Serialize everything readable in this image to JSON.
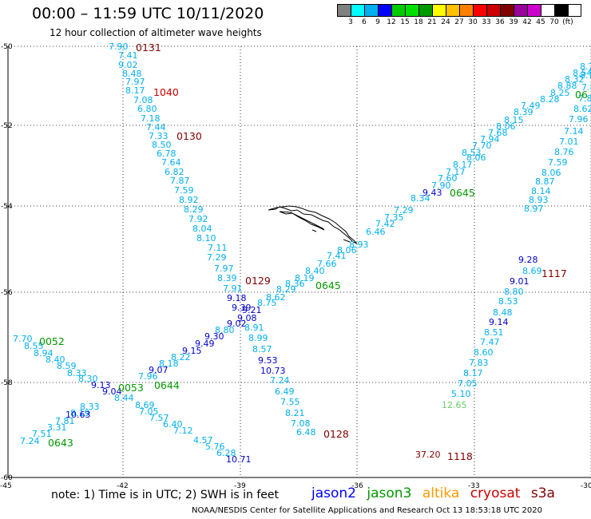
{
  "title": "00:00 – 11:59 UTC 10/11/2020",
  "subtitle": "12 hour collection of altimeter wave heights",
  "legend": {
    "unit": "(ft)",
    "colors": [
      "#808080",
      "#00ffff",
      "#00b0f0",
      "#0000ff",
      "#00cc00",
      "#00e000",
      "#009900",
      "#ffff00",
      "#ffc000",
      "#ff8000",
      "#ff0000",
      "#cc0000",
      "#800000",
      "#990099",
      "#cc00cc",
      "#ffffff",
      "#000000"
    ],
    "labels": [
      "3",
      "6",
      "9",
      "12",
      "15",
      "18",
      "21",
      "24",
      "27",
      "30",
      "33",
      "36",
      "39",
      "42",
      "45",
      "70"
    ]
  },
  "axes": {
    "lat_labels": [
      "-50",
      "-52",
      "-54",
      "-56",
      "-58",
      "-60"
    ],
    "lon_labels": [
      "-45",
      "-42",
      "-39",
      "-36",
      "-33",
      "-30"
    ]
  },
  "colors": {
    "jason2": "#0000ff",
    "jason3": "#009900",
    "altika": "#ff9900",
    "cryosat": "#cc0000",
    "s3a": "#800000",
    "wave_light": "#00b0f0",
    "wave_dark": "#0000cc"
  },
  "pass_labels": [
    {
      "text": "0131",
      "sat": "s3a"
    },
    {
      "text": "1040",
      "sat": "cryosat"
    },
    {
      "text": "0130",
      "sat": "s3a"
    },
    {
      "text": "0129",
      "sat": "s3a"
    },
    {
      "text": "0128",
      "sat": "s3a"
    },
    {
      "text": "1117",
      "sat": "s3a"
    },
    {
      "text": "1118",
      "sat": "s3a"
    },
    {
      "text": "0645",
      "sat": "jason3"
    },
    {
      "text": "0645",
      "sat": "jason3"
    },
    {
      "text": "06",
      "sat": "jason3"
    },
    {
      "text": "0644",
      "sat": "jason3"
    },
    {
      "text": "0053",
      "sat": "jason3"
    },
    {
      "text": "0052",
      "sat": "jason3"
    },
    {
      "text": "0643",
      "sat": "jason3"
    }
  ],
  "wave_values": [
    {
      "text": "7.90",
      "shade": "light"
    },
    {
      "text": "7.41",
      "shade": "light"
    },
    {
      "text": "9.02",
      "shade": "light"
    },
    {
      "text": "8.48",
      "shade": "light"
    },
    {
      "text": "7.97",
      "shade": "light"
    },
    {
      "text": "8.17",
      "shade": "light"
    },
    {
      "text": "7.08",
      "shade": "light"
    },
    {
      "text": "6.80",
      "shade": "light"
    },
    {
      "text": "7.18",
      "shade": "light"
    },
    {
      "text": "7.44",
      "shade": "light"
    },
    {
      "text": "7.33",
      "shade": "light"
    },
    {
      "text": "8.50",
      "shade": "light"
    },
    {
      "text": "6.78",
      "shade": "light"
    },
    {
      "text": "7.64",
      "shade": "light"
    },
    {
      "text": "6.82",
      "shade": "light"
    },
    {
      "text": "7.87",
      "shade": "light"
    },
    {
      "text": "7.59",
      "shade": "light"
    },
    {
      "text": "8.92",
      "shade": "light"
    },
    {
      "text": "8.29",
      "shade": "light"
    },
    {
      "text": "7.92",
      "shade": "light"
    },
    {
      "text": "8.04",
      "shade": "light"
    },
    {
      "text": "8.10",
      "shade": "light"
    },
    {
      "text": "7.11",
      "shade": "light"
    },
    {
      "text": "7.29",
      "shade": "light"
    },
    {
      "text": "7.97",
      "shade": "light"
    },
    {
      "text": "8.39",
      "shade": "light"
    },
    {
      "text": "7.91",
      "shade": "light"
    },
    {
      "text": "9.18",
      "shade": "dark"
    },
    {
      "text": "9.39",
      "shade": "dark"
    },
    {
      "text": "9.21",
      "shade": "dark"
    },
    {
      "text": "9.08",
      "shade": "dark"
    },
    {
      "text": "9.02",
      "shade": "dark"
    },
    {
      "text": "8.91",
      "shade": "light"
    },
    {
      "text": "8.99",
      "shade": "light"
    },
    {
      "text": "8.57",
      "shade": "light"
    },
    {
      "text": "9.53",
      "shade": "dark"
    },
    {
      "text": "10.73",
      "shade": "dark"
    },
    {
      "text": "7.24",
      "shade": "light"
    },
    {
      "text": "6.49",
      "shade": "light"
    },
    {
      "text": "7.55",
      "shade": "light"
    },
    {
      "text": "8.21",
      "shade": "light"
    },
    {
      "text": "7.08",
      "shade": "light"
    },
    {
      "text": "6.48",
      "shade": "light"
    },
    {
      "text": "8.75",
      "shade": "light"
    },
    {
      "text": "8.62",
      "shade": "light"
    },
    {
      "text": "8.29",
      "shade": "light"
    },
    {
      "text": "8.36",
      "shade": "light"
    },
    {
      "text": "8.19",
      "shade": "light"
    },
    {
      "text": "8.40",
      "shade": "light"
    },
    {
      "text": "7.66",
      "shade": "light"
    },
    {
      "text": "7.41",
      "shade": "light"
    },
    {
      "text": "8.06",
      "shade": "light"
    },
    {
      "text": "8.93",
      "shade": "light"
    },
    {
      "text": "6.46",
      "shade": "light"
    },
    {
      "text": "7.42",
      "shade": "light"
    },
    {
      "text": "7.35",
      "shade": "light"
    },
    {
      "text": "7.29",
      "shade": "light"
    },
    {
      "text": "8.34",
      "shade": "light"
    },
    {
      "text": "9.43",
      "shade": "dark"
    },
    {
      "text": "7.90",
      "shade": "light"
    },
    {
      "text": "7.60",
      "shade": "light"
    },
    {
      "text": "7.17",
      "shade": "light"
    },
    {
      "text": "8.17",
      "shade": "light"
    },
    {
      "text": "8.53",
      "shade": "light"
    },
    {
      "text": "8.06",
      "shade": "light"
    },
    {
      "text": "7.70",
      "shade": "light"
    },
    {
      "text": "7.94",
      "shade": "light"
    },
    {
      "text": "7.68",
      "shade": "light"
    },
    {
      "text": "8.06",
      "shade": "light"
    },
    {
      "text": "8.15",
      "shade": "light"
    },
    {
      "text": "8.39",
      "shade": "light"
    },
    {
      "text": "7.49",
      "shade": "light"
    },
    {
      "text": "8.28",
      "shade": "light"
    },
    {
      "text": "8.25",
      "shade": "light"
    },
    {
      "text": "8.88",
      "shade": "light"
    },
    {
      "text": "8.32",
      "shade": "light"
    },
    {
      "text": "8.54",
      "shade": "light"
    },
    {
      "text": "8.7",
      "shade": "light"
    },
    {
      "text": "8.80",
      "shade": "light"
    },
    {
      "text": "9.30",
      "shade": "dark"
    },
    {
      "text": "9.49",
      "shade": "dark"
    },
    {
      "text": "9.15",
      "shade": "dark"
    },
    {
      "text": "8.22",
      "shade": "light"
    },
    {
      "text": "8.18",
      "shade": "light"
    },
    {
      "text": "9.07",
      "shade": "dark"
    },
    {
      "text": "7.96",
      "shade": "light"
    },
    {
      "text": "7.70",
      "shade": "light"
    },
    {
      "text": "8.55",
      "shade": "light"
    },
    {
      "text": "8.94",
      "shade": "light"
    },
    {
      "text": "8.40",
      "shade": "light"
    },
    {
      "text": "8.59",
      "shade": "light"
    },
    {
      "text": "8.33",
      "shade": "light"
    },
    {
      "text": "8.30",
      "shade": "light"
    },
    {
      "text": "9.13",
      "shade": "dark"
    },
    {
      "text": "9.04",
      "shade": "dark"
    },
    {
      "text": "8.44",
      "shade": "light"
    },
    {
      "text": "8.69",
      "shade": "light"
    },
    {
      "text": "7.05",
      "shade": "light"
    },
    {
      "text": "7.57",
      "shade": "light"
    },
    {
      "text": "6.40",
      "shade": "light"
    },
    {
      "text": "7.12",
      "shade": "light"
    },
    {
      "text": "4.57",
      "shade": "light"
    },
    {
      "text": "5.76",
      "shade": "light"
    },
    {
      "text": "6.28",
      "shade": "light"
    },
    {
      "text": "10.71",
      "shade": "dark"
    },
    {
      "text": "8.33",
      "shade": "light"
    },
    {
      "text": "8.19",
      "shade": "light"
    },
    {
      "text": "10.63",
      "shade": "dark"
    },
    {
      "text": "7.81",
      "shade": "light"
    },
    {
      "text": "3.31",
      "shade": "light"
    },
    {
      "text": "7.51",
      "shade": "light"
    },
    {
      "text": "7.24",
      "shade": "light"
    },
    {
      "text": "8.7",
      "shade": "light"
    },
    {
      "text": "7.8",
      "shade": "light"
    },
    {
      "text": "7.81",
      "shade": "light"
    },
    {
      "text": "8.62",
      "shade": "light"
    },
    {
      "text": "7.96",
      "shade": "light"
    },
    {
      "text": "7.14",
      "shade": "light"
    },
    {
      "text": "7.01",
      "shade": "light"
    },
    {
      "text": "8.76",
      "shade": "light"
    },
    {
      "text": "7.59",
      "shade": "light"
    },
    {
      "text": "8.06",
      "shade": "light"
    },
    {
      "text": "8.87",
      "shade": "light"
    },
    {
      "text": "8.14",
      "shade": "light"
    },
    {
      "text": "8.93",
      "shade": "light"
    },
    {
      "text": "8.97",
      "shade": "light"
    },
    {
      "text": "9.28",
      "shade": "dark"
    },
    {
      "text": "8.69",
      "shade": "light"
    },
    {
      "text": "9.01",
      "shade": "dark"
    },
    {
      "text": "8.80",
      "shade": "light"
    },
    {
      "text": "8.53",
      "shade": "light"
    },
    {
      "text": "8.48",
      "shade": "light"
    },
    {
      "text": "9.14",
      "shade": "dark"
    },
    {
      "text": "8.51",
      "shade": "light"
    },
    {
      "text": "7.47",
      "shade": "light"
    },
    {
      "text": "8.60",
      "shade": "light"
    },
    {
      "text": "7.83",
      "shade": "light"
    },
    {
      "text": "8.17",
      "shade": "light"
    },
    {
      "text": "7.05",
      "shade": "light"
    },
    {
      "text": "5.10",
      "shade": "light"
    },
    {
      "text": "12.65",
      "shade": "green"
    },
    {
      "text": "37.20",
      "shade": "maroon"
    }
  ],
  "note": "note: 1) Time is in UTC; 2) SWH is in feet",
  "satellites": [
    {
      "name": "jason2",
      "color": "#0000ff"
    },
    {
      "name": "jason3",
      "color": "#009900"
    },
    {
      "name": "altika",
      "color": "#ff9900"
    },
    {
      "name": "cryosat",
      "color": "#cc0000"
    },
    {
      "name": "s3a",
      "color": "#800000"
    }
  ],
  "credit": "NOAA/NESDIS Center for Satellite Applications and Research    Oct 13 18:53:18 UTC 2020"
}
